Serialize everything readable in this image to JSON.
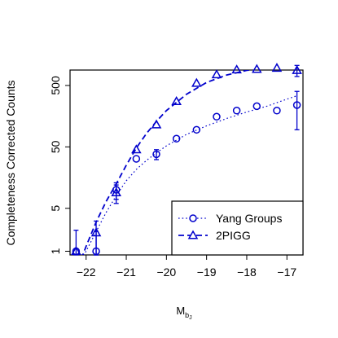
{
  "chart_data": {
    "type": "line",
    "title": "",
    "xlabel_main": "M",
    "xlabel_sub": "b",
    "xlabel_subsub": "J",
    "ylabel": "Completeness Corrected Counts",
    "xlim": [
      -22.4,
      -16.6
    ],
    "ylim_log10": [
      -0.06,
      2.95
    ],
    "y_log_scale": true,
    "grid": false,
    "legend_position": "bottom-right",
    "x_ticks": [
      -22,
      -21,
      -20,
      -19,
      -18,
      -17
    ],
    "x_tick_labels": [
      "−22",
      "−21",
      "−20",
      "−19",
      "−18",
      "−17"
    ],
    "y_ticks": [
      1,
      5,
      50,
      500
    ],
    "y_tick_labels": [
      "1",
      "5",
      "50",
      "500"
    ],
    "series": [
      {
        "name": "Yang Groups",
        "marker": "circle",
        "line_style": "dotted",
        "color": "#0000cc",
        "x": [
          -22.25,
          -21.75,
          -21.25,
          -20.75,
          -20.25,
          -19.75,
          -19.25,
          -18.75,
          -18.25,
          -17.75,
          -17.25,
          -16.75
        ],
        "y": [
          1,
          1,
          10,
          32,
          38,
          68,
          95,
          155,
          195,
          230,
          195,
          240
        ],
        "err_low": [
          null,
          0.6,
          7,
          null,
          31,
          null,
          null,
          null,
          null,
          null,
          null,
          95
        ],
        "err_high": [
          null,
          2.1,
          13,
          null,
          45,
          null,
          null,
          null,
          null,
          null,
          null,
          400
        ],
        "fit_x": [
          -22.3,
          -22.0,
          -21.75,
          -21.5,
          -21.25,
          -21.0,
          -20.75,
          -20.5,
          -20.25,
          -20.0,
          -19.5,
          -19.0,
          -18.5,
          -18.0,
          -17.5,
          -17.0,
          -16.75
        ],
        "fit_y": [
          0.55,
          1.0,
          2.1,
          4.3,
          8.0,
          14.0,
          21.5,
          30.0,
          40.0,
          52.0,
          80.0,
          110.0,
          145.0,
          185.0,
          230.0,
          300.0,
          340.0
        ]
      },
      {
        "name": "2PIGG",
        "marker": "triangle",
        "line_style": "dashed",
        "color": "#0000cc",
        "x": [
          -22.25,
          -21.75,
          -21.25,
          -20.75,
          -20.25,
          -19.75,
          -19.25,
          -18.75,
          -18.25,
          -17.75,
          -17.25,
          -16.75
        ],
        "y": [
          1,
          2,
          9,
          45,
          115,
          275,
          545,
          750,
          900,
          920,
          960,
          880
        ],
        "err_low": [
          0.6,
          0.8,
          6,
          null,
          null,
          null,
          null,
          null,
          null,
          null,
          null,
          700
        ],
        "err_high": [
          2.2,
          3.1,
          12,
          null,
          null,
          null,
          null,
          null,
          null,
          null,
          null,
          1060
        ],
        "fit_x": [
          -22.2,
          -22.0,
          -21.75,
          -21.5,
          -21.25,
          -21.0,
          -20.75,
          -20.5,
          -20.25,
          -20.0,
          -19.5,
          -19.0,
          -18.5,
          -18.0,
          -17.5,
          -17.0,
          -16.75
        ],
        "fit_y": [
          0.55,
          1.2,
          3.0,
          6.5,
          12.5,
          25.0,
          48.0,
          82.0,
          130.0,
          195.0,
          360.0,
          560.0,
          740.0,
          880.0,
          960.0,
          990.0,
          995.0
        ]
      }
    ]
  }
}
